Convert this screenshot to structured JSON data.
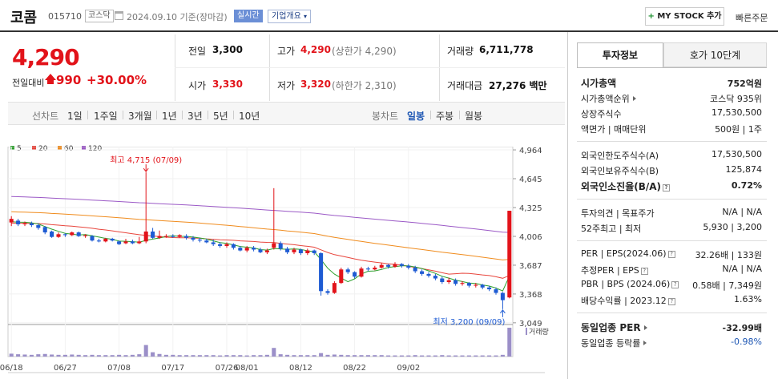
{
  "header": {
    "stock_name": "코콤",
    "stock_code": "015710",
    "market_badge": "코스닥",
    "date_text": "2024.09.10  기준(장마감)",
    "realtime_label": "실시간",
    "company_overview_label": "기업개요",
    "mystock_label": "MY STOCK 추가",
    "mystock_plus": "+",
    "quick_order_label": "빠른주문"
  },
  "price": {
    "current": "4,290",
    "change_label": "전일대비",
    "change_value": "990",
    "change_pct": "+30.00%"
  },
  "stats": {
    "prev_close_label": "전일",
    "prev_close": "3,300",
    "high_label": "고가",
    "high": "4,290",
    "upper_limit": "(상한가 4,290)",
    "volume_label": "거래량",
    "volume": "6,711,778",
    "open_label": "시가",
    "open": "3,330",
    "low_label": "저가",
    "low": "3,320",
    "lower_limit": "(하한가 2,310)",
    "amount_label": "거래대금",
    "amount": "27,276 백만"
  },
  "period_bar": {
    "line_label": "선차트",
    "line_periods": [
      "1일",
      "1주일",
      "3개월",
      "1년",
      "3년",
      "5년",
      "10년"
    ],
    "candle_label": "봉차트",
    "candle_periods": [
      "일봉",
      "주봉",
      "월봉"
    ],
    "selected": "일봉"
  },
  "legend": [
    {
      "label": "5",
      "color": "#2ca02c"
    },
    {
      "label": "20",
      "color": "#e8453c"
    },
    {
      "label": "60",
      "color": "#f08c1e"
    },
    {
      "label": "120",
      "color": "#9b59c6"
    }
  ],
  "chart_data": {
    "type": "candlestick",
    "y_ticks": [
      4964,
      4645,
      4325,
      4006,
      3687,
      3368,
      3049
    ],
    "x_ticks": [
      "06/18",
      "06/27",
      "07/08",
      "07/17",
      "07/26",
      "08/01",
      "08/12",
      "08/22",
      "09/02"
    ],
    "high_annotation": "최고 4,715 (07/09)",
    "low_annotation": "최저 3,200 (09/09)",
    "volume_label": "거래량",
    "candles": [
      {
        "o": 4160,
        "c": 4200,
        "h": 4230,
        "l": 4120
      },
      {
        "o": 4180,
        "c": 4140,
        "h": 4200,
        "l": 4120
      },
      {
        "o": 4140,
        "c": 4150,
        "h": 4170,
        "l": 4120
      },
      {
        "o": 4150,
        "c": 4130,
        "h": 4170,
        "l": 4110
      },
      {
        "o": 4130,
        "c": 4100,
        "h": 4150,
        "l": 4080
      },
      {
        "o": 4110,
        "c": 4050,
        "h": 4120,
        "l": 4030
      },
      {
        "o": 4060,
        "c": 4000,
        "h": 4070,
        "l": 3990
      },
      {
        "o": 4000,
        "c": 4030,
        "h": 4050,
        "l": 3990
      },
      {
        "o": 4030,
        "c": 4020,
        "h": 4040,
        "l": 4000
      },
      {
        "o": 4020,
        "c": 4050,
        "h": 4060,
        "l": 4010
      },
      {
        "o": 4050,
        "c": 4010,
        "h": 4060,
        "l": 4000
      },
      {
        "o": 4010,
        "c": 4020,
        "h": 4030,
        "l": 3990
      },
      {
        "o": 4010,
        "c": 3960,
        "h": 4020,
        "l": 3950
      },
      {
        "o": 3960,
        "c": 3950,
        "h": 3980,
        "l": 3940
      },
      {
        "o": 3950,
        "c": 3980,
        "h": 3990,
        "l": 3940
      },
      {
        "o": 3980,
        "c": 3960,
        "h": 3990,
        "l": 3950
      },
      {
        "o": 3950,
        "c": 3920,
        "h": 3960,
        "l": 3910
      },
      {
        "o": 3930,
        "c": 3950,
        "h": 3980,
        "l": 3920
      },
      {
        "o": 3950,
        "c": 3930,
        "h": 3970,
        "l": 3920
      },
      {
        "o": 3930,
        "c": 3950,
        "h": 4000,
        "l": 3920
      },
      {
        "o": 3950,
        "c": 4060,
        "h": 4715,
        "l": 3930
      },
      {
        "o": 4060,
        "c": 3990,
        "h": 4100,
        "l": 3980
      },
      {
        "o": 3990,
        "c": 4010,
        "h": 4070,
        "l": 3980
      },
      {
        "o": 4000,
        "c": 4010,
        "h": 4030,
        "l": 3990
      },
      {
        "o": 4010,
        "c": 4000,
        "h": 4030,
        "l": 3990
      },
      {
        "o": 4000,
        "c": 4020,
        "h": 4030,
        "l": 3990
      },
      {
        "o": 4010,
        "c": 3990,
        "h": 4030,
        "l": 3970
      },
      {
        "o": 3990,
        "c": 3970,
        "h": 4010,
        "l": 3950
      },
      {
        "o": 3970,
        "c": 3960,
        "h": 3990,
        "l": 3940
      },
      {
        "o": 3960,
        "c": 3940,
        "h": 3980,
        "l": 3930
      },
      {
        "o": 3940,
        "c": 3920,
        "h": 3970,
        "l": 3900
      },
      {
        "o": 3920,
        "c": 3900,
        "h": 3940,
        "l": 3880
      },
      {
        "o": 3900,
        "c": 3920,
        "h": 3940,
        "l": 3880
      },
      {
        "o": 3920,
        "c": 3880,
        "h": 3930,
        "l": 3860
      },
      {
        "o": 3880,
        "c": 3850,
        "h": 3900,
        "l": 3840
      },
      {
        "o": 3850,
        "c": 3880,
        "h": 3900,
        "l": 3830
      },
      {
        "o": 3880,
        "c": 3860,
        "h": 3900,
        "l": 3840
      },
      {
        "o": 3860,
        "c": 3830,
        "h": 3880,
        "l": 3820
      },
      {
        "o": 3830,
        "c": 3850,
        "h": 3870,
        "l": 3810
      },
      {
        "o": 3880,
        "c": 3930,
        "h": 4540,
        "l": 3860
      },
      {
        "o": 3930,
        "c": 3870,
        "h": 3950,
        "l": 3850
      },
      {
        "o": 3870,
        "c": 3830,
        "h": 3890,
        "l": 3810
      },
      {
        "o": 3830,
        "c": 3860,
        "h": 3880,
        "l": 3810
      },
      {
        "o": 3860,
        "c": 3820,
        "h": 3870,
        "l": 3800
      },
      {
        "o": 3820,
        "c": 3850,
        "h": 3870,
        "l": 3800
      },
      {
        "o": 3850,
        "c": 3820,
        "h": 3860,
        "l": 3800
      },
      {
        "o": 3820,
        "c": 3400,
        "h": 3830,
        "l": 3350
      },
      {
        "o": 3400,
        "c": 3380,
        "h": 3420,
        "l": 3360
      },
      {
        "o": 3380,
        "c": 3490,
        "h": 3510,
        "l": 3370
      },
      {
        "o": 3490,
        "c": 3640,
        "h": 3660,
        "l": 3480
      },
      {
        "o": 3640,
        "c": 3610,
        "h": 3660,
        "l": 3590
      },
      {
        "o": 3610,
        "c": 3560,
        "h": 3620,
        "l": 3540
      },
      {
        "o": 3560,
        "c": 3650,
        "h": 3670,
        "l": 3550
      },
      {
        "o": 3650,
        "c": 3640,
        "h": 3670,
        "l": 3620
      },
      {
        "o": 3640,
        "c": 3660,
        "h": 3680,
        "l": 3630
      },
      {
        "o": 3660,
        "c": 3690,
        "h": 3710,
        "l": 3650
      },
      {
        "o": 3690,
        "c": 3670,
        "h": 3700,
        "l": 3650
      },
      {
        "o": 3670,
        "c": 3700,
        "h": 3720,
        "l": 3660
      },
      {
        "o": 3700,
        "c": 3680,
        "h": 3710,
        "l": 3660
      },
      {
        "o": 3680,
        "c": 3660,
        "h": 3700,
        "l": 3640
      },
      {
        "o": 3660,
        "c": 3620,
        "h": 3680,
        "l": 3600
      },
      {
        "o": 3620,
        "c": 3590,
        "h": 3640,
        "l": 3570
      },
      {
        "o": 3590,
        "c": 3570,
        "h": 3610,
        "l": 3550
      },
      {
        "o": 3570,
        "c": 3540,
        "h": 3590,
        "l": 3520
      },
      {
        "o": 3540,
        "c": 3500,
        "h": 3560,
        "l": 3480
      },
      {
        "o": 3500,
        "c": 3520,
        "h": 3550,
        "l": 3480
      },
      {
        "o": 3520,
        "c": 3480,
        "h": 3540,
        "l": 3460
      },
      {
        "o": 3480,
        "c": 3490,
        "h": 3510,
        "l": 3460
      },
      {
        "o": 3490,
        "c": 3460,
        "h": 3500,
        "l": 3440
      },
      {
        "o": 3460,
        "c": 3470,
        "h": 3490,
        "l": 3440
      },
      {
        "o": 3470,
        "c": 3440,
        "h": 3480,
        "l": 3420
      },
      {
        "o": 3440,
        "c": 3420,
        "h": 3460,
        "l": 3400
      },
      {
        "o": 3420,
        "c": 3380,
        "h": 3440,
        "l": 3360
      },
      {
        "o": 3380,
        "c": 3300,
        "h": 3390,
        "l": 3200
      },
      {
        "o": 3330,
        "c": 4290,
        "h": 4290,
        "l": 3320
      }
    ],
    "volume": [
      10,
      8,
      7,
      6,
      8,
      9,
      7,
      6,
      6,
      7,
      6,
      5,
      6,
      5,
      5,
      5,
      6,
      5,
      6,
      8,
      40,
      15,
      9,
      6,
      6,
      5,
      5,
      5,
      5,
      5,
      5,
      4,
      5,
      5,
      5,
      4,
      5,
      5,
      6,
      30,
      8,
      6,
      5,
      5,
      5,
      5,
      12,
      6,
      7,
      6,
      5,
      5,
      5,
      5,
      5,
      5,
      4,
      4,
      4,
      4,
      5,
      4,
      4,
      4,
      5,
      4,
      4,
      4,
      4,
      4,
      4,
      4,
      4,
      6,
      100
    ]
  },
  "info_panel": {
    "tab_invest": "투자정보",
    "tab_orderbook": "호가 10단계",
    "rows1": [
      {
        "label": "시가총액",
        "value": "752억원"
      },
      {
        "label": "시가총액순위",
        "value": "코스닥 935위"
      },
      {
        "label": "상장주식수",
        "value": "17,530,500"
      },
      {
        "label": "액면가 | 매매단위",
        "value": "500원 | 1주"
      }
    ],
    "rows2": [
      {
        "label": "외국인한도주식수(A)",
        "value": "17,530,500"
      },
      {
        "label": "외국인보유주식수(B)",
        "value": "125,874"
      },
      {
        "label": "외국인소진율(B/A)",
        "value": "0.72%"
      }
    ],
    "rows3": [
      {
        "label": "투자의견 | 목표주가",
        "value": "N/A | N/A"
      },
      {
        "label": "52주최고 | 최저",
        "value": "5,930 | 3,200"
      }
    ],
    "rows4": [
      {
        "label": "PER | EPS(2024.06)",
        "value": "32.26배 | 133원"
      },
      {
        "label": "추정PER | EPS",
        "value": "N/A | N/A"
      },
      {
        "label": "PBR | BPS (2024.06)",
        "value": "0.58배 | 7,349원"
      },
      {
        "label": "배당수익률 | 2023.12",
        "value": "1.63%"
      }
    ],
    "rows5": [
      {
        "label": "동일업종 PER",
        "value": "-32.99배"
      },
      {
        "label": "동일업종 등락률",
        "value": "-0.98%"
      }
    ],
    "help_mark": "?"
  }
}
